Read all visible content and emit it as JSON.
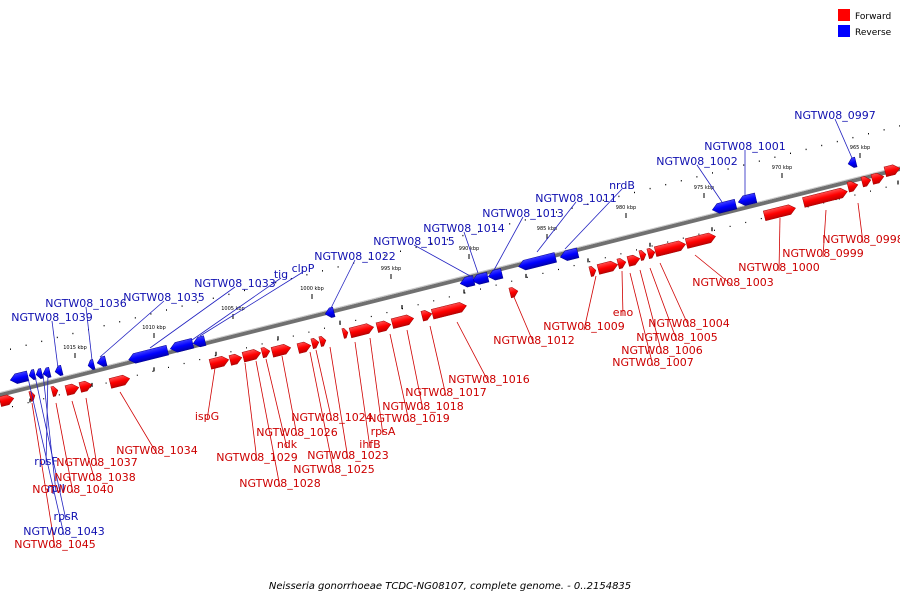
{
  "colors": {
    "forward": "#ff0000",
    "reverse": "#0000ff",
    "axis": "#707070",
    "tick": "#000000",
    "leader": "#d00000"
  },
  "legend": {
    "forward_label": "Forward",
    "reverse_label": "Reverse"
  },
  "caption": "Neisseria gonorrhoeae TCDC-NG08107, complete genome. - 0..2154835",
  "scale_labels": [
    "965 kbp",
    "970 kbp",
    "975 kbp",
    "980 kbp",
    "985 kbp",
    "990 kbp",
    "995 kbp",
    "1000 kbp",
    "1005 kbp",
    "1010 kbp",
    "1015 kbp"
  ],
  "reverse_labels": [
    "NGTW08_0997",
    "NGTW08_1001",
    "NGTW08_1002",
    "nrdB",
    "NGTW08_1011",
    "NGTW08_1013",
    "NGTW08_1014",
    "NGTW08_1015",
    "NGTW08_1022",
    "clpP",
    "tig",
    "NGTW08_1033",
    "NGTW08_1035",
    "NGTW08_1036",
    "NGTW08_1039",
    "rpsF",
    "rplI",
    "rpsR",
    "NGTW08_1043"
  ],
  "forward_labels": [
    "NGTW08_0998",
    "NGTW08_0999",
    "NGTW08_1000",
    "NGTW08_1003",
    "NGTW08_1004",
    "NGTW08_1005",
    "NGTW08_1006",
    "NGTW08_1007",
    "eno",
    "NGTW08_1009",
    "NGTW08_1012",
    "NGTW08_1016",
    "NGTW08_1017",
    "NGTW08_1018",
    "NGTW08_1019",
    "rpsA",
    "ihfB",
    "NGTW08_1023",
    "NGTW08_1024",
    "NGTW08_1025",
    "NGTW08_1026",
    "ndk",
    "NGTW08_1028",
    "NGTW08_1029",
    "ispG",
    "NGTW08_1034",
    "NGTW08_1037",
    "NGTW08_1038",
    "NGTW08_1040",
    "NGTW08_1045"
  ]
}
